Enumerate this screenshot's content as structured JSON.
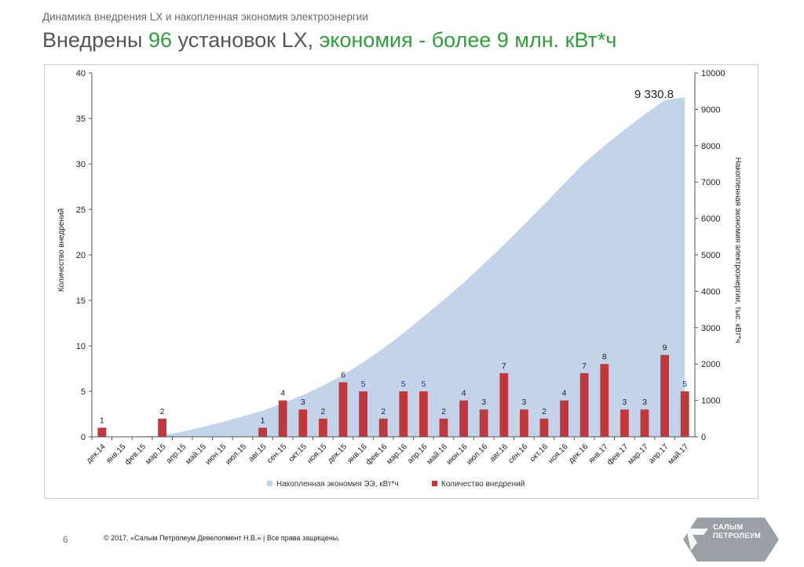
{
  "header": {
    "subtitle": "Динамика внедрения LX и накопленная экономия электроэнергии",
    "title_part1": "Внедрены ",
    "title_part2": "96",
    "title_part3": " установок LX, ",
    "title_part4": "экономия - более 9 млн. кВт*ч"
  },
  "colors": {
    "accent_green": "#2f9e3a",
    "bar_red": "#c0383c",
    "area_blue": "#c2d3ea",
    "logo_bg": "#9aa0a6"
  },
  "footer": {
    "page_number": "6",
    "copyright": "© 2017. «Салым Петролеум Девелопмент Н.В.» | Все права защищены.",
    "logo_line1": "САЛЫМ",
    "logo_line2": "ПЕТРОЛЕУМ"
  },
  "chart_data": {
    "type": "bar",
    "categories": [
      "дек.14",
      "янв.15",
      "фев.15",
      "мар.15",
      "апр.15",
      "май.15",
      "июн.15",
      "июл.15",
      "авг.15",
      "сен.15",
      "окт.15",
      "ноя.15",
      "дек.15",
      "янв.16",
      "фев.16",
      "мар.16",
      "апр.16",
      "май.16",
      "июн.16",
      "июл.16",
      "авг.16",
      "сен.16",
      "окт.16",
      "ноя.16",
      "дек.16",
      "янв.17",
      "фев.17",
      "мар.17",
      "апр.17",
      "май.17"
    ],
    "series": [
      {
        "name": "Накопленная экономия ЭЭ, кВт*ч",
        "type": "area",
        "axis": "right",
        "values": [
          0,
          5,
          15,
          40,
          140,
          270,
          410,
          560,
          720,
          920,
          1150,
          1410,
          1700,
          2050,
          2430,
          2850,
          3300,
          3760,
          4240,
          4750,
          5280,
          5830,
          6390,
          6960,
          7530,
          8000,
          8440,
          8860,
          9250,
          9330.8
        ]
      },
      {
        "name": "Количество внедрений",
        "type": "bar",
        "axis": "left",
        "values": [
          1,
          0,
          0,
          2,
          0,
          0,
          0,
          0,
          1,
          4,
          3,
          2,
          6,
          5,
          2,
          5,
          5,
          2,
          4,
          3,
          7,
          3,
          2,
          4,
          7,
          8,
          3,
          3,
          9,
          5
        ]
      }
    ],
    "bar_labels": [
      "1",
      "",
      "",
      "2",
      "",
      "",
      "",
      "",
      "1",
      "4",
      "3",
      "2",
      "6",
      "5",
      "2",
      "5",
      "5",
      "2",
      "4",
      "3",
      "7",
      "3",
      "2",
      "4",
      "7",
      "8",
      "3",
      "3",
      "9",
      "5"
    ],
    "bar_label_blue": [
      false,
      false,
      false,
      false,
      false,
      false,
      false,
      false,
      false,
      false,
      false,
      false,
      false,
      true,
      false,
      true,
      true,
      false,
      false,
      false,
      false,
      false,
      false,
      false,
      false,
      false,
      false,
      false,
      false,
      true
    ],
    "end_annotation": "9 330.8",
    "ylabel": "Количество внедрений",
    "y2label": "Накопленная экономия электроэнергии, тыс. кВт*ч",
    "ylim": [
      0,
      40
    ],
    "yticks": [
      "0",
      "5",
      "10",
      "15",
      "20",
      "25",
      "30",
      "35",
      "40"
    ],
    "y2lim": [
      0,
      10000
    ],
    "y2ticks": [
      "0",
      "1000",
      "2000",
      "3000",
      "4000",
      "5000",
      "6000",
      "7000",
      "8000",
      "9000",
      "10000"
    ],
    "legend_position": "bottom"
  }
}
